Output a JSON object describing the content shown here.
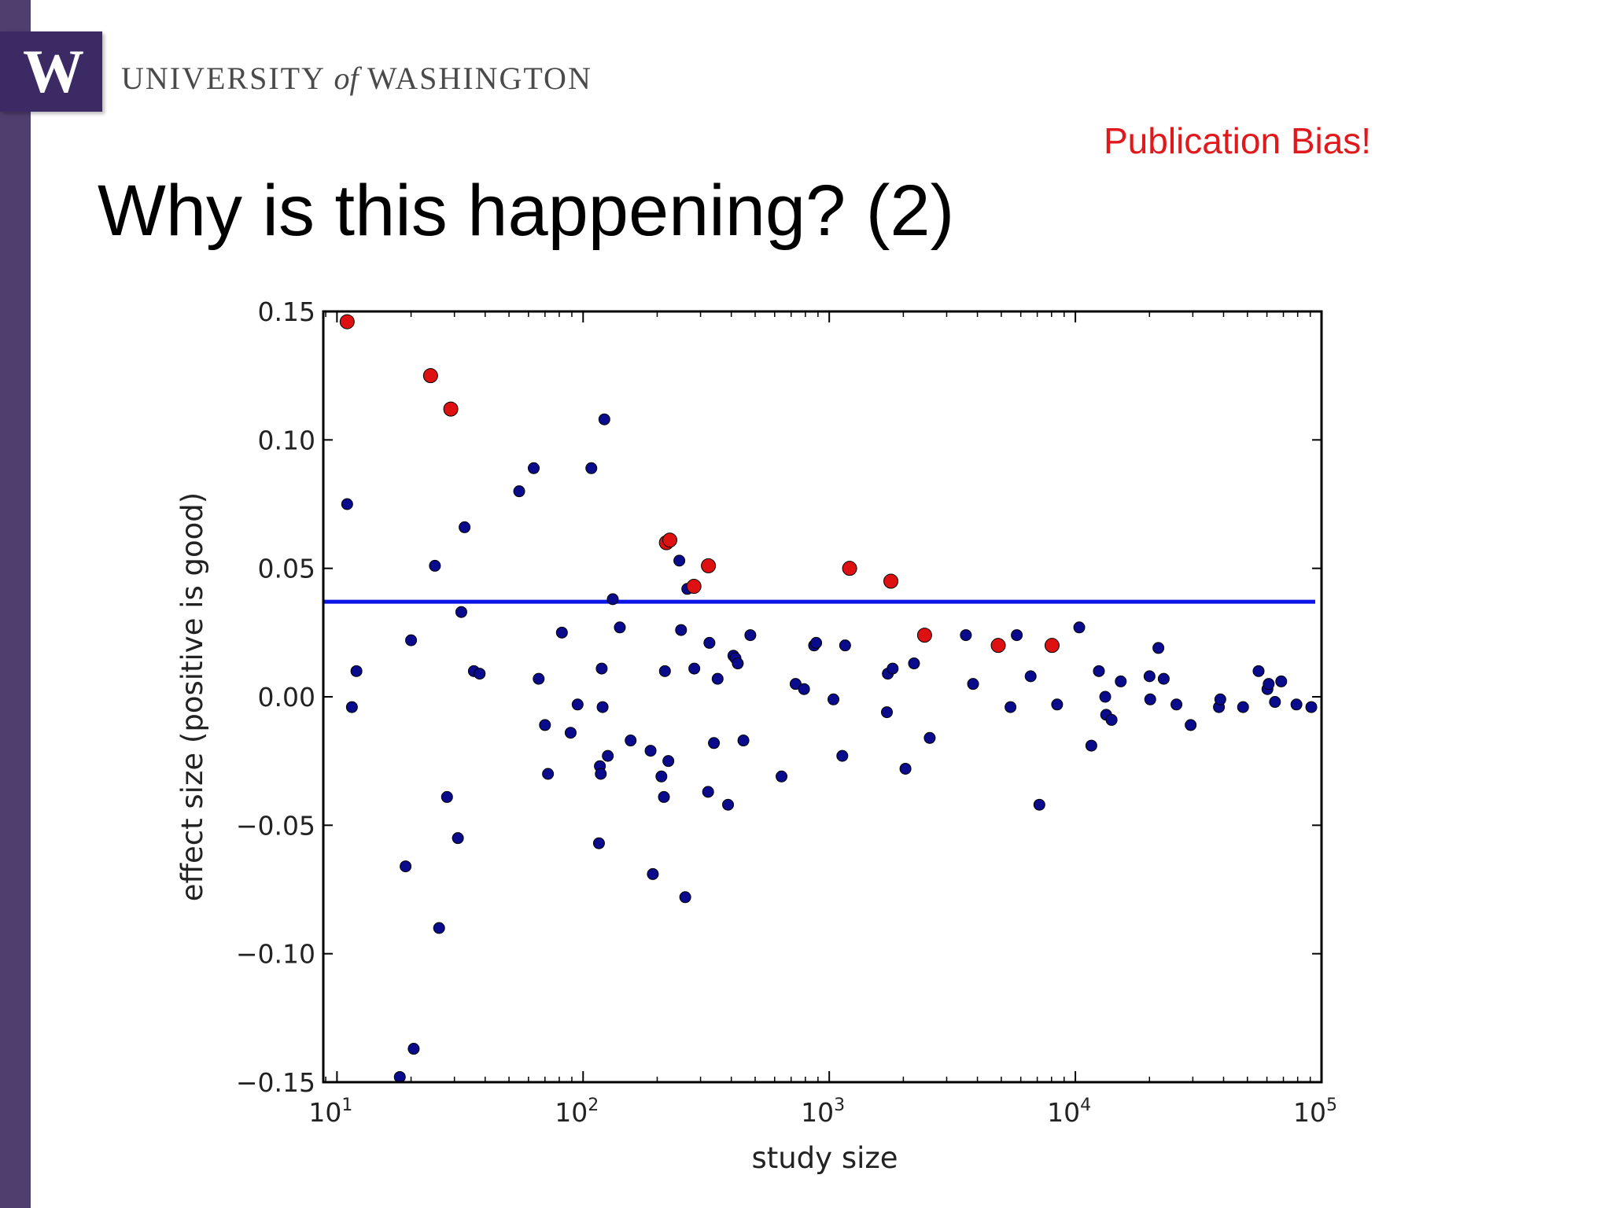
{
  "header": {
    "logo_letter": "W",
    "university_pre": "UNIVERSITY",
    "university_of": "of",
    "university_post": "WASHINGTON"
  },
  "callout": "Publication Bias!",
  "slide_title": "Why is this happening? (2)",
  "colors": {
    "sidebar": "#4f3f6e",
    "logo": "#3b2a63",
    "callout": "#e0191c",
    "points": "#0a0a8c",
    "highlighted_points": "#dd1111",
    "mean_line": "#0a14e6"
  },
  "chart_data": {
    "type": "scatter",
    "title": "",
    "xlabel": "study size",
    "ylabel": "effect size (positive is good)",
    "xscale": "log",
    "xlim": [
      8.8,
      100000
    ],
    "ylim": [
      -0.15,
      0.15
    ],
    "x_ticks": [
      {
        "value": 10,
        "base": "10",
        "exp": "1"
      },
      {
        "value": 100,
        "base": "10",
        "exp": "2"
      },
      {
        "value": 1000,
        "base": "10",
        "exp": "3"
      },
      {
        "value": 10000,
        "base": "10",
        "exp": "4"
      },
      {
        "value": 100000,
        "base": "10",
        "exp": "5"
      }
    ],
    "y_ticks": [
      {
        "value": 0.15,
        "label": "0.15"
      },
      {
        "value": 0.1,
        "label": "0.10"
      },
      {
        "value": 0.05,
        "label": "0.05"
      },
      {
        "value": 0.0,
        "label": "0.00"
      },
      {
        "value": -0.05,
        "label": "−0.05"
      },
      {
        "value": -0.1,
        "label": "−0.10"
      },
      {
        "value": -0.15,
        "label": "−0.15"
      }
    ],
    "grid": false,
    "mean_line": {
      "y": 0.037
    },
    "series": [
      {
        "role": "all studies",
        "points": [
          [
            11,
            0.075
          ],
          [
            11.5,
            -0.004
          ],
          [
            12,
            0.01
          ],
          [
            18,
            -0.148
          ],
          [
            19,
            -0.066
          ],
          [
            20,
            0.022
          ],
          [
            20.5,
            -0.137
          ],
          [
            25,
            0.051
          ],
          [
            26,
            -0.09
          ],
          [
            28,
            -0.039
          ],
          [
            31,
            -0.055
          ],
          [
            32,
            0.033
          ],
          [
            33,
            0.066
          ],
          [
            36,
            0.01
          ],
          [
            38,
            0.009
          ],
          [
            55,
            0.08
          ],
          [
            63,
            0.089
          ],
          [
            66,
            0.007
          ],
          [
            70,
            -0.011
          ],
          [
            72,
            -0.03
          ],
          [
            82,
            0.025
          ],
          [
            89,
            -0.014
          ],
          [
            95,
            -0.003
          ],
          [
            108,
            0.089
          ],
          [
            116,
            -0.057
          ],
          [
            117,
            -0.027
          ],
          [
            118,
            -0.03
          ],
          [
            119,
            0.011
          ],
          [
            120,
            -0.004
          ],
          [
            122,
            0.108
          ],
          [
            126,
            -0.023
          ],
          [
            132,
            0.038
          ],
          [
            141,
            0.027
          ],
          [
            156,
            -0.017
          ],
          [
            188,
            -0.021
          ],
          [
            192,
            -0.069
          ],
          [
            208,
            -0.031
          ],
          [
            213,
            -0.039
          ],
          [
            215,
            0.01
          ],
          [
            222,
            -0.025
          ],
          [
            246,
            0.053
          ],
          [
            250,
            0.026
          ],
          [
            260,
            -0.078
          ],
          [
            265,
            0.042
          ],
          [
            283,
            0.011
          ],
          [
            322,
            -0.037
          ],
          [
            326,
            0.021
          ],
          [
            340,
            -0.018
          ],
          [
            352,
            0.007
          ],
          [
            388,
            -0.042
          ],
          [
            408,
            0.016
          ],
          [
            416,
            0.015
          ],
          [
            425,
            0.013
          ],
          [
            448,
            -0.017
          ],
          [
            478,
            0.024
          ],
          [
            640,
            -0.031
          ],
          [
            730,
            0.005
          ],
          [
            790,
            0.003
          ],
          [
            868,
            0.02
          ],
          [
            885,
            0.021
          ],
          [
            1040,
            -0.001
          ],
          [
            1130,
            -0.023
          ],
          [
            1160,
            0.02
          ],
          [
            1715,
            -0.006
          ],
          [
            1730,
            0.009
          ],
          [
            1810,
            0.011
          ],
          [
            2040,
            -0.028
          ],
          [
            2210,
            0.013
          ],
          [
            2560,
            -0.016
          ],
          [
            3590,
            0.024
          ],
          [
            3840,
            0.005
          ],
          [
            5450,
            -0.004
          ],
          [
            5780,
            0.024
          ],
          [
            6580,
            0.008
          ],
          [
            7140,
            -0.042
          ],
          [
            8430,
            -0.003
          ],
          [
            10370,
            0.027
          ],
          [
            11610,
            -0.019
          ],
          [
            12460,
            0.01
          ],
          [
            13220,
            0.0
          ],
          [
            13340,
            -0.007
          ],
          [
            14030,
            -0.009
          ],
          [
            15290,
            0.006
          ],
          [
            20010,
            0.008
          ],
          [
            20140,
            -0.001
          ],
          [
            21740,
            0.019
          ],
          [
            22850,
            0.007
          ],
          [
            25740,
            -0.003
          ],
          [
            29400,
            -0.011
          ],
          [
            38300,
            -0.004
          ],
          [
            38800,
            -0.001
          ],
          [
            48000,
            -0.004
          ],
          [
            55500,
            0.01
          ],
          [
            60300,
            0.003
          ],
          [
            61000,
            0.005
          ],
          [
            64700,
            -0.002
          ],
          [
            68600,
            0.006
          ],
          [
            79100,
            -0.003
          ],
          [
            90900,
            -0.004
          ]
        ]
      },
      {
        "role": "highlighted studies",
        "points": [
          [
            11,
            0.146
          ],
          [
            24,
            0.125
          ],
          [
            29,
            0.112
          ],
          [
            218,
            0.06
          ],
          [
            225,
            0.061
          ],
          [
            282,
            0.043
          ],
          [
            323,
            0.051
          ],
          [
            1210,
            0.05
          ],
          [
            1780,
            0.045
          ],
          [
            2440,
            0.024
          ],
          [
            4860,
            0.02
          ],
          [
            8040,
            0.02
          ]
        ]
      }
    ]
  }
}
